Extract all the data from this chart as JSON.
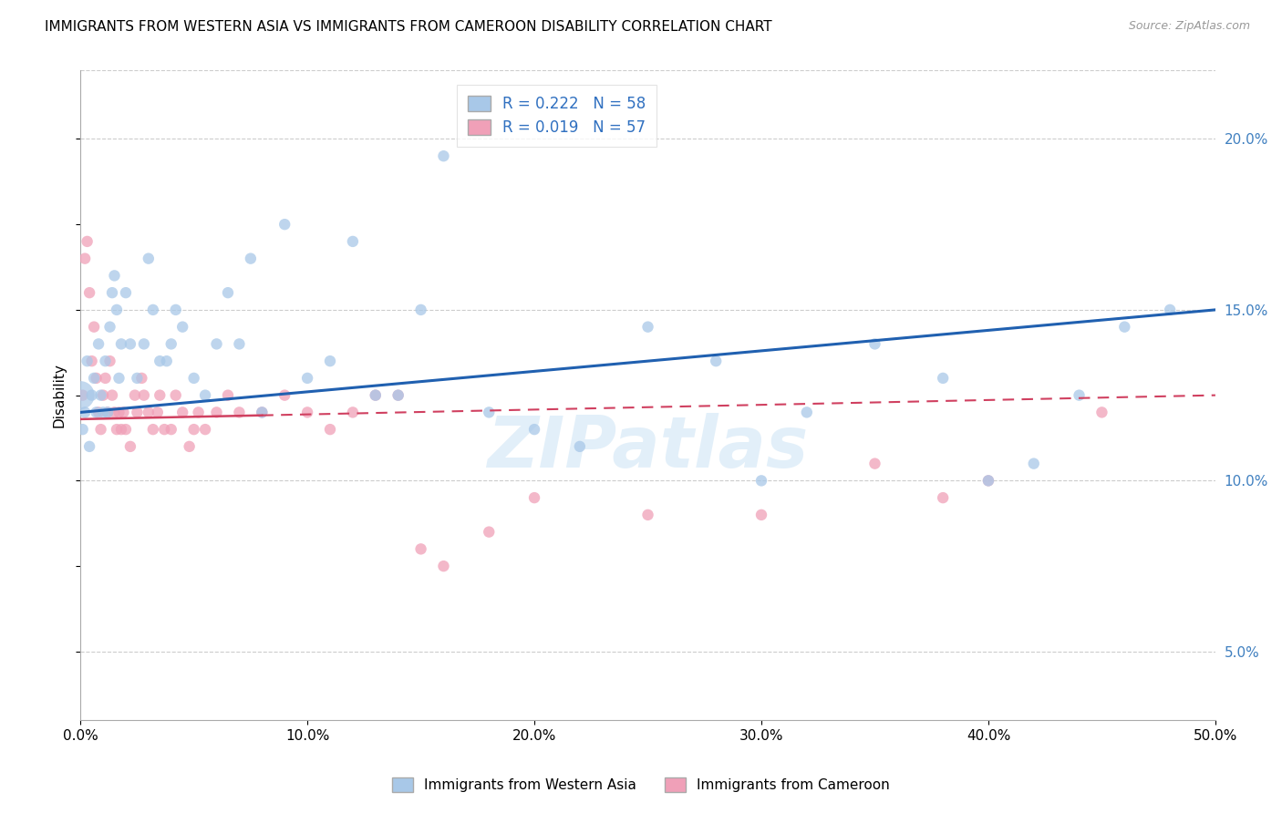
{
  "title": "IMMIGRANTS FROM WESTERN ASIA VS IMMIGRANTS FROM CAMEROON DISABILITY CORRELATION CHART",
  "source": "Source: ZipAtlas.com",
  "ylabel": "Disability",
  "xlabel": "",
  "xlim": [
    0,
    50
  ],
  "ylim": [
    3,
    22
  ],
  "xticks": [
    0,
    10,
    20,
    30,
    40,
    50
  ],
  "xticklabels": [
    "0.0%",
    "10.0%",
    "20.0%",
    "30.0%",
    "40.0%",
    "50.0%"
  ],
  "yticks_right": [
    5,
    10,
    15,
    20
  ],
  "yticklabels_right": [
    "5.0%",
    "10.0%",
    "15.0%",
    "20.0%"
  ],
  "grid_color": "#cccccc",
  "watermark": "ZIPatlas",
  "blue_line_start_y": 12.0,
  "blue_line_end_y": 15.0,
  "pink_line_start_y": 11.8,
  "pink_line_end_y": 12.5,
  "series1": {
    "label": "Immigrants from Western Asia",
    "R": "0.222",
    "N": "58",
    "color": "#a8c8e8",
    "line_color": "#2060b0",
    "x": [
      0.1,
      0.2,
      0.3,
      0.4,
      0.5,
      0.6,
      0.7,
      0.8,
      0.9,
      1.0,
      1.1,
      1.2,
      1.3,
      1.4,
      1.5,
      1.6,
      1.7,
      1.8,
      2.0,
      2.2,
      2.5,
      2.8,
      3.0,
      3.2,
      3.5,
      3.8,
      4.0,
      4.2,
      4.5,
      5.0,
      5.5,
      6.0,
      6.5,
      7.0,
      7.5,
      8.0,
      9.0,
      10.0,
      11.0,
      12.0,
      13.0,
      14.0,
      15.0,
      16.0,
      18.0,
      20.0,
      22.0,
      25.0,
      28.0,
      30.0,
      32.0,
      35.0,
      38.0,
      40.0,
      42.0,
      44.0,
      46.0,
      48.0
    ],
    "y": [
      11.5,
      12.0,
      13.5,
      11.0,
      12.5,
      13.0,
      12.0,
      14.0,
      12.5,
      12.0,
      13.5,
      12.0,
      14.5,
      15.5,
      16.0,
      15.0,
      13.0,
      14.0,
      15.5,
      14.0,
      13.0,
      14.0,
      16.5,
      15.0,
      13.5,
      13.5,
      14.0,
      15.0,
      14.5,
      13.0,
      12.5,
      14.0,
      15.5,
      14.0,
      16.5,
      12.0,
      17.5,
      13.0,
      13.5,
      17.0,
      12.5,
      12.5,
      15.0,
      19.5,
      12.0,
      11.5,
      11.0,
      14.5,
      13.5,
      10.0,
      12.0,
      14.0,
      13.0,
      10.0,
      10.5,
      12.5,
      14.5,
      15.0
    ],
    "special_x": 0.0,
    "special_y": 12.5,
    "special_size": 500
  },
  "series2": {
    "label": "Immigrants from Cameroon",
    "R": "0.019",
    "N": "57",
    "color": "#f0a0b8",
    "line_color": "#d04060",
    "x": [
      0.1,
      0.2,
      0.3,
      0.4,
      0.5,
      0.6,
      0.7,
      0.8,
      0.9,
      1.0,
      1.1,
      1.2,
      1.3,
      1.4,
      1.5,
      1.6,
      1.7,
      1.8,
      1.9,
      2.0,
      2.2,
      2.4,
      2.5,
      2.7,
      2.8,
      3.0,
      3.2,
      3.4,
      3.5,
      3.7,
      4.0,
      4.2,
      4.5,
      4.8,
      5.0,
      5.2,
      5.5,
      6.0,
      6.5,
      7.0,
      8.0,
      9.0,
      10.0,
      11.0,
      12.0,
      13.0,
      14.0,
      15.0,
      16.0,
      18.0,
      20.0,
      25.0,
      30.0,
      35.0,
      38.0,
      40.0,
      45.0
    ],
    "y": [
      12.5,
      16.5,
      17.0,
      15.5,
      13.5,
      14.5,
      13.0,
      12.0,
      11.5,
      12.5,
      13.0,
      12.0,
      13.5,
      12.5,
      12.0,
      11.5,
      12.0,
      11.5,
      12.0,
      11.5,
      11.0,
      12.5,
      12.0,
      13.0,
      12.5,
      12.0,
      11.5,
      12.0,
      12.5,
      11.5,
      11.5,
      12.5,
      12.0,
      11.0,
      11.5,
      12.0,
      11.5,
      12.0,
      12.5,
      12.0,
      12.0,
      12.5,
      12.0,
      11.5,
      12.0,
      12.5,
      12.5,
      8.0,
      7.5,
      8.5,
      9.5,
      9.0,
      9.0,
      10.5,
      9.5,
      10.0,
      12.0
    ],
    "pink_solid_x_end": 8.0,
    "pink_solid_start_y": 12.0,
    "pink_solid_end_y": 11.5
  },
  "title_fontsize": 11,
  "axis_label_fontsize": 11,
  "tick_fontsize": 11,
  "legend_fontsize": 12
}
